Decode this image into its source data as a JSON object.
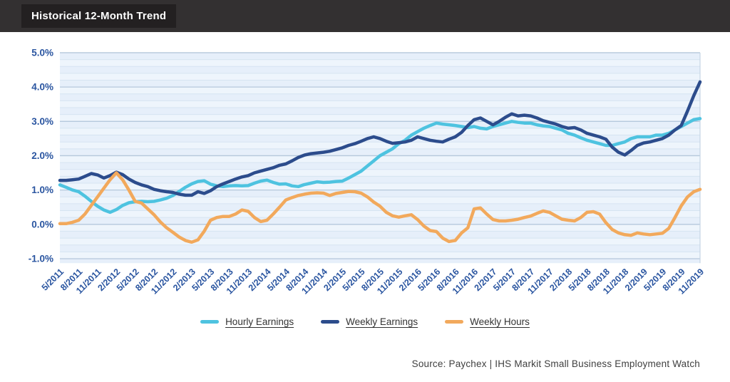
{
  "header": {
    "title": "Historical 12-Month Trend"
  },
  "source": {
    "text": "Source: Paychex | IHS Markit Small Business Employment Watch"
  },
  "colors": {
    "header_bg": "#333031",
    "title_chip_bg": "#232021",
    "plot_bg_band_dark": "#e6effa",
    "plot_bg_band_light": "#eef5fc",
    "grid_major": "#b5c8dc",
    "grid_minor": "#d6e4f1",
    "plot_right_edge": "#c6d5e4",
    "axis_text": "#2a55a0",
    "hourly_earnings": "#4ec3e0",
    "weekly_earnings": "#2c4c8c",
    "weekly_hours": "#f2a95c"
  },
  "chart_data": {
    "type": "line",
    "title": "Historical 12-Month Trend",
    "xlabel": "",
    "ylabel": "",
    "ylim": [
      -1.0,
      5.0
    ],
    "grid": "horizontal, major every 1.0%, minor every 0.2%",
    "legend_position": "bottom-center",
    "y_ticks": [
      5,
      4,
      3,
      2,
      1,
      0,
      -1
    ],
    "y_tick_labels": [
      "5.0%",
      "4.0%",
      "3.0%",
      "2.0%",
      "1.0%",
      "0.0%",
      "-1.0%"
    ],
    "x_unit": "monthly points, labeled every 3 months",
    "x_tick_labels": [
      "5/2011",
      "8/2011",
      "11/2011",
      "2/2012",
      "5/2012",
      "8/2012",
      "11/2012",
      "2/2013",
      "5/2013",
      "8/2013",
      "11/2013",
      "2/2014",
      "5/2014",
      "8/2014",
      "11/2014",
      "2/2015",
      "5/2015",
      "8/2015",
      "11/2015",
      "2/2016",
      "5/2016",
      "8/2016",
      "11/2016",
      "2/2017",
      "5/2017",
      "8/2017",
      "11/2017",
      "2/2018",
      "5/2018",
      "8/2018",
      "11/2018",
      "2/2019",
      "5/2019",
      "8/2019",
      "11/2019"
    ],
    "series": [
      {
        "name": "Hourly Earnings",
        "color": "#4ec3e0",
        "values": [
          1.15,
          1.08,
          1.0,
          0.95,
          0.82,
          0.67,
          0.53,
          0.42,
          0.35,
          0.43,
          0.55,
          0.63,
          0.66,
          0.67,
          0.66,
          0.67,
          0.71,
          0.76,
          0.84,
          0.96,
          1.08,
          1.18,
          1.25,
          1.27,
          1.17,
          1.12,
          1.1,
          1.12,
          1.13,
          1.12,
          1.13,
          1.2,
          1.26,
          1.29,
          1.22,
          1.17,
          1.18,
          1.12,
          1.1,
          1.16,
          1.2,
          1.24,
          1.22,
          1.23,
          1.25,
          1.26,
          1.35,
          1.45,
          1.55,
          1.7,
          1.85,
          2.0,
          2.1,
          2.2,
          2.35,
          2.45,
          2.6,
          2.7,
          2.8,
          2.88,
          2.95,
          2.92,
          2.9,
          2.88,
          2.85,
          2.82,
          2.85,
          2.8,
          2.78,
          2.85,
          2.9,
          2.95,
          3.0,
          2.97,
          2.95,
          2.95,
          2.9,
          2.87,
          2.85,
          2.8,
          2.75,
          2.65,
          2.6,
          2.52,
          2.45,
          2.4,
          2.35,
          2.3,
          2.3,
          2.35,
          2.4,
          2.5,
          2.55,
          2.55,
          2.55,
          2.6,
          2.6,
          2.65,
          2.75,
          2.85,
          2.95,
          3.05,
          3.08
        ]
      },
      {
        "name": "Weekly Earnings",
        "color": "#2c4c8c",
        "values": [
          1.28,
          1.28,
          1.3,
          1.32,
          1.4,
          1.48,
          1.44,
          1.35,
          1.42,
          1.52,
          1.45,
          1.32,
          1.22,
          1.15,
          1.1,
          1.02,
          0.98,
          0.95,
          0.93,
          0.88,
          0.85,
          0.85,
          0.95,
          0.9,
          0.98,
          1.1,
          1.18,
          1.25,
          1.32,
          1.38,
          1.42,
          1.5,
          1.55,
          1.6,
          1.65,
          1.72,
          1.76,
          1.85,
          1.95,
          2.02,
          2.06,
          2.08,
          2.1,
          2.13,
          2.18,
          2.23,
          2.3,
          2.35,
          2.42,
          2.5,
          2.55,
          2.5,
          2.42,
          2.36,
          2.38,
          2.4,
          2.45,
          2.55,
          2.5,
          2.45,
          2.42,
          2.4,
          2.48,
          2.55,
          2.68,
          2.88,
          3.05,
          3.1,
          3.0,
          2.9,
          3.0,
          3.12,
          3.22,
          3.16,
          3.18,
          3.16,
          3.1,
          3.02,
          2.97,
          2.92,
          2.85,
          2.8,
          2.82,
          2.75,
          2.65,
          2.6,
          2.55,
          2.48,
          2.25,
          2.1,
          2.02,
          2.15,
          2.3,
          2.37,
          2.4,
          2.45,
          2.5,
          2.6,
          2.75,
          2.88,
          3.3,
          3.75,
          4.15
        ]
      },
      {
        "name": "Weekly Hours",
        "color": "#f2a95c",
        "values": [
          0.02,
          0.02,
          0.06,
          0.12,
          0.3,
          0.55,
          0.8,
          1.05,
          1.3,
          1.5,
          1.3,
          1.0,
          0.67,
          0.62,
          0.45,
          0.28,
          0.07,
          -0.1,
          -0.23,
          -0.37,
          -0.47,
          -0.52,
          -0.45,
          -0.2,
          0.12,
          0.2,
          0.23,
          0.23,
          0.3,
          0.42,
          0.38,
          0.2,
          0.08,
          0.12,
          0.3,
          0.5,
          0.71,
          0.78,
          0.84,
          0.88,
          0.91,
          0.92,
          0.91,
          0.84,
          0.9,
          0.93,
          0.96,
          0.95,
          0.91,
          0.8,
          0.65,
          0.53,
          0.35,
          0.25,
          0.21,
          0.25,
          0.28,
          0.14,
          -0.05,
          -0.18,
          -0.21,
          -0.4,
          -0.5,
          -0.47,
          -0.25,
          -0.1,
          0.45,
          0.48,
          0.3,
          0.14,
          0.1,
          0.1,
          0.12,
          0.15,
          0.2,
          0.24,
          0.32,
          0.39,
          0.35,
          0.25,
          0.15,
          0.12,
          0.1,
          0.2,
          0.35,
          0.37,
          0.3,
          0.05,
          -0.15,
          -0.25,
          -0.3,
          -0.32,
          -0.25,
          -0.28,
          -0.3,
          -0.28,
          -0.26,
          -0.12,
          0.2,
          0.54,
          0.8,
          0.95,
          1.02
        ]
      }
    ]
  }
}
